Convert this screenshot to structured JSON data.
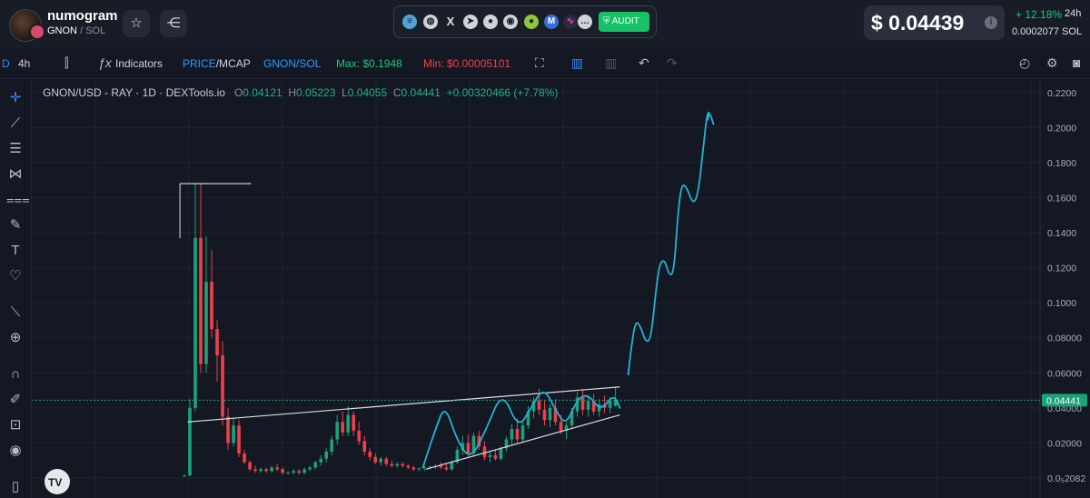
{
  "header": {
    "token_name": "numogram",
    "token_symbol": "GNON",
    "chain": "SOL",
    "audit_label": "AUDIT",
    "price": "$ 0.04439",
    "change": "+ 12.18%",
    "period": "24h",
    "sol_price": "0.0002077 SOL",
    "socials": [
      "website-icon",
      "globe-icon",
      "x-icon",
      "telegram-icon",
      "reddit-icon",
      "github-icon",
      "coingecko-icon",
      "coinmarketcap-icon",
      "other-icon",
      "more-icon"
    ]
  },
  "toolbar": {
    "range_tag": "D",
    "interval": "4h",
    "indicators_label": "Indicators",
    "price_label": "PRICE",
    "mcap_label": "MCAP",
    "pair_label": "GNON/SOL",
    "max_label": "Max: $0.1948",
    "min_label": "Min: $0.00005101"
  },
  "chart_legend": {
    "symbol": "GNON/USD - RAY · 1D · DEXTools.io",
    "o_key": "O",
    "o": "0.04121",
    "h_key": "H",
    "h": "0.05223",
    "l_key": "L",
    "l": "0.04055",
    "c_key": "C",
    "c": "0.04441",
    "change": "+0.00320466 (+7.78%)"
  },
  "chart_data": {
    "type": "candlestick",
    "title": "GNON/USD - RAY · 1D · DEXTools.io",
    "y_ticks": [
      "0.2200",
      "0.2000",
      "0.1800",
      "0.1600",
      "0.1400",
      "0.1200",
      "0.1000",
      "0.08000",
      "0.06000",
      "0.04000",
      "0.02000",
      "0.0₅2082"
    ],
    "y_tick_values": [
      0.22,
      0.2,
      0.18,
      0.16,
      0.14,
      0.12,
      0.1,
      0.08,
      0.06,
      0.04,
      0.02,
      2.082e-05
    ],
    "ylim": [
      0.0,
      0.223
    ],
    "last_price_label": "0.04441",
    "last_price": 0.04441,
    "grid": true,
    "colors": {
      "up": "#1aa37a",
      "down": "#f0404a",
      "drawing": "#1fb5d6",
      "trendline": "#d9dce2",
      "price_line": "#1aa37a"
    },
    "candles": [
      {
        "o": 0.001,
        "h": 0.002,
        "l": 0.0005,
        "c": 0.0015
      },
      {
        "o": 0.0015,
        "h": 0.045,
        "l": 0.001,
        "c": 0.04
      },
      {
        "o": 0.04,
        "h": 0.168,
        "l": 0.038,
        "c": 0.137
      },
      {
        "o": 0.137,
        "h": 0.168,
        "l": 0.06,
        "c": 0.065
      },
      {
        "o": 0.065,
        "h": 0.138,
        "l": 0.06,
        "c": 0.112
      },
      {
        "o": 0.112,
        "h": 0.13,
        "l": 0.08,
        "c": 0.085
      },
      {
        "o": 0.085,
        "h": 0.09,
        "l": 0.055,
        "c": 0.07
      },
      {
        "o": 0.07,
        "h": 0.078,
        "l": 0.03,
        "c": 0.035
      },
      {
        "o": 0.035,
        "h": 0.04,
        "l": 0.016,
        "c": 0.02
      },
      {
        "o": 0.02,
        "h": 0.034,
        "l": 0.018,
        "c": 0.03
      },
      {
        "o": 0.03,
        "h": 0.033,
        "l": 0.012,
        "c": 0.014
      },
      {
        "o": 0.014,
        "h": 0.016,
        "l": 0.008,
        "c": 0.009
      },
      {
        "o": 0.009,
        "h": 0.01,
        "l": 0.004,
        "c": 0.005
      },
      {
        "o": 0.005,
        "h": 0.007,
        "l": 0.003,
        "c": 0.004
      },
      {
        "o": 0.004,
        "h": 0.006,
        "l": 0.003,
        "c": 0.005
      },
      {
        "o": 0.005,
        "h": 0.006,
        "l": 0.003,
        "c": 0.004
      },
      {
        "o": 0.004,
        "h": 0.007,
        "l": 0.003,
        "c": 0.006
      },
      {
        "o": 0.006,
        "h": 0.008,
        "l": 0.004,
        "c": 0.005
      },
      {
        "o": 0.005,
        "h": 0.006,
        "l": 0.002,
        "c": 0.003
      },
      {
        "o": 0.003,
        "h": 0.004,
        "l": 0.002,
        "c": 0.003
      },
      {
        "o": 0.003,
        "h": 0.005,
        "l": 0.002,
        "c": 0.004
      },
      {
        "o": 0.004,
        "h": 0.005,
        "l": 0.002,
        "c": 0.003
      },
      {
        "o": 0.003,
        "h": 0.006,
        "l": 0.002,
        "c": 0.005
      },
      {
        "o": 0.005,
        "h": 0.007,
        "l": 0.004,
        "c": 0.006
      },
      {
        "o": 0.006,
        "h": 0.01,
        "l": 0.005,
        "c": 0.009
      },
      {
        "o": 0.009,
        "h": 0.013,
        "l": 0.007,
        "c": 0.011
      },
      {
        "o": 0.011,
        "h": 0.017,
        "l": 0.009,
        "c": 0.015
      },
      {
        "o": 0.015,
        "h": 0.024,
        "l": 0.013,
        "c": 0.022
      },
      {
        "o": 0.022,
        "h": 0.036,
        "l": 0.019,
        "c": 0.032
      },
      {
        "o": 0.032,
        "h": 0.038,
        "l": 0.024,
        "c": 0.026
      },
      {
        "o": 0.026,
        "h": 0.041,
        "l": 0.024,
        "c": 0.036
      },
      {
        "o": 0.036,
        "h": 0.038,
        "l": 0.024,
        "c": 0.027
      },
      {
        "o": 0.027,
        "h": 0.032,
        "l": 0.019,
        "c": 0.021
      },
      {
        "o": 0.021,
        "h": 0.024,
        "l": 0.013,
        "c": 0.015
      },
      {
        "o": 0.015,
        "h": 0.017,
        "l": 0.01,
        "c": 0.012
      },
      {
        "o": 0.012,
        "h": 0.014,
        "l": 0.008,
        "c": 0.009
      },
      {
        "o": 0.009,
        "h": 0.012,
        "l": 0.007,
        "c": 0.011
      },
      {
        "o": 0.011,
        "h": 0.012,
        "l": 0.007,
        "c": 0.008
      },
      {
        "o": 0.008,
        "h": 0.01,
        "l": 0.006,
        "c": 0.007
      },
      {
        "o": 0.007,
        "h": 0.009,
        "l": 0.006,
        "c": 0.008
      },
      {
        "o": 0.008,
        "h": 0.009,
        "l": 0.006,
        "c": 0.007
      },
      {
        "o": 0.007,
        "h": 0.008,
        "l": 0.005,
        "c": 0.006
      },
      {
        "o": 0.006,
        "h": 0.007,
        "l": 0.004,
        "c": 0.005
      },
      {
        "o": 0.005,
        "h": 0.006,
        "l": 0.004,
        "c": 0.0055
      },
      {
        "o": 0.0055,
        "h": 0.007,
        "l": 0.004,
        "c": 0.006
      },
      {
        "o": 0.006,
        "h": 0.007,
        "l": 0.005,
        "c": 0.0065
      },
      {
        "o": 0.0065,
        "h": 0.008,
        "l": 0.005,
        "c": 0.007
      },
      {
        "o": 0.007,
        "h": 0.009,
        "l": 0.005,
        "c": 0.006
      },
      {
        "o": 0.006,
        "h": 0.008,
        "l": 0.004,
        "c": 0.005
      },
      {
        "o": 0.005,
        "h": 0.01,
        "l": 0.004,
        "c": 0.009
      },
      {
        "o": 0.009,
        "h": 0.018,
        "l": 0.008,
        "c": 0.016
      },
      {
        "o": 0.016,
        "h": 0.024,
        "l": 0.013,
        "c": 0.02
      },
      {
        "o": 0.02,
        "h": 0.025,
        "l": 0.012,
        "c": 0.014
      },
      {
        "o": 0.014,
        "h": 0.026,
        "l": 0.012,
        "c": 0.024
      },
      {
        "o": 0.024,
        "h": 0.027,
        "l": 0.016,
        "c": 0.018
      },
      {
        "o": 0.018,
        "h": 0.021,
        "l": 0.01,
        "c": 0.012
      },
      {
        "o": 0.012,
        "h": 0.015,
        "l": 0.009,
        "c": 0.013
      },
      {
        "o": 0.013,
        "h": 0.016,
        "l": 0.01,
        "c": 0.011
      },
      {
        "o": 0.011,
        "h": 0.018,
        "l": 0.01,
        "c": 0.017
      },
      {
        "o": 0.017,
        "h": 0.024,
        "l": 0.015,
        "c": 0.022
      },
      {
        "o": 0.022,
        "h": 0.031,
        "l": 0.019,
        "c": 0.028
      },
      {
        "o": 0.028,
        "h": 0.034,
        "l": 0.02,
        "c": 0.022
      },
      {
        "o": 0.022,
        "h": 0.032,
        "l": 0.02,
        "c": 0.03
      },
      {
        "o": 0.03,
        "h": 0.041,
        "l": 0.028,
        "c": 0.038
      },
      {
        "o": 0.038,
        "h": 0.046,
        "l": 0.034,
        "c": 0.044
      },
      {
        "o": 0.044,
        "h": 0.051,
        "l": 0.036,
        "c": 0.039
      },
      {
        "o": 0.039,
        "h": 0.044,
        "l": 0.03,
        "c": 0.033
      },
      {
        "o": 0.033,
        "h": 0.042,
        "l": 0.029,
        "c": 0.04
      },
      {
        "o": 0.04,
        "h": 0.045,
        "l": 0.03,
        "c": 0.032
      },
      {
        "o": 0.032,
        "h": 0.036,
        "l": 0.025,
        "c": 0.027
      },
      {
        "o": 0.027,
        "h": 0.032,
        "l": 0.022,
        "c": 0.03
      },
      {
        "o": 0.03,
        "h": 0.04,
        "l": 0.028,
        "c": 0.038
      },
      {
        "o": 0.038,
        "h": 0.049,
        "l": 0.035,
        "c": 0.046
      },
      {
        "o": 0.046,
        "h": 0.051,
        "l": 0.036,
        "c": 0.039
      },
      {
        "o": 0.039,
        "h": 0.047,
        "l": 0.035,
        "c": 0.044
      },
      {
        "o": 0.044,
        "h": 0.048,
        "l": 0.036,
        "c": 0.038
      },
      {
        "o": 0.038,
        "h": 0.045,
        "l": 0.035,
        "c": 0.042
      },
      {
        "o": 0.042,
        "h": 0.047,
        "l": 0.037,
        "c": 0.04
      },
      {
        "o": 0.04,
        "h": 0.046,
        "l": 0.037,
        "c": 0.044
      },
      {
        "o": 0.0412,
        "h": 0.0522,
        "l": 0.0406,
        "c": 0.0444
      }
    ],
    "trendlines": [
      {
        "name": "rising-wedge-upper",
        "from": [
          0.245,
          0.032
        ],
        "to": [
          0.925,
          0.052
        ]
      },
      {
        "name": "rising-wedge-lower",
        "from": [
          0.62,
          0.005
        ],
        "to": [
          0.925,
          0.036
        ]
      },
      {
        "name": "ath-marker",
        "from": [
          0.233,
          0.168
        ],
        "to": [
          0.345,
          0.168
        ]
      }
    ],
    "projection": [
      [
        0.615,
        0.006
      ],
      [
        0.635,
        0.028
      ],
      [
        0.65,
        0.042
      ],
      [
        0.668,
        0.022
      ],
      [
        0.69,
        0.01
      ],
      [
        0.715,
        0.028
      ],
      [
        0.74,
        0.05
      ],
      [
        0.765,
        0.028
      ],
      [
        0.785,
        0.04
      ],
      [
        0.805,
        0.052
      ],
      [
        0.825,
        0.038
      ],
      [
        0.84,
        0.03
      ],
      [
        0.858,
        0.045
      ],
      [
        0.875,
        0.048
      ],
      [
        0.895,
        0.038
      ],
      [
        0.915,
        0.048
      ],
      [
        0.925,
        0.04
      ]
    ],
    "prediction": [
      [
        0.938,
        0.059
      ],
      [
        0.944,
        0.078
      ],
      [
        0.95,
        0.09
      ],
      [
        0.958,
        0.086
      ],
      [
        0.966,
        0.077
      ],
      [
        0.974,
        0.08
      ],
      [
        0.981,
        0.105
      ],
      [
        0.987,
        0.122
      ],
      [
        0.995,
        0.125
      ],
      [
        1.003,
        0.115
      ],
      [
        1.01,
        0.118
      ],
      [
        1.016,
        0.15
      ],
      [
        1.022,
        0.168
      ],
      [
        1.03,
        0.166
      ],
      [
        1.04,
        0.156
      ],
      [
        1.048,
        0.162
      ],
      [
        1.056,
        0.188
      ],
      [
        1.062,
        0.208
      ],
      [
        1.066,
        0.209
      ],
      [
        1.062,
        0.203
      ],
      [
        1.066,
        0.209
      ],
      [
        1.072,
        0.202
      ]
    ]
  }
}
